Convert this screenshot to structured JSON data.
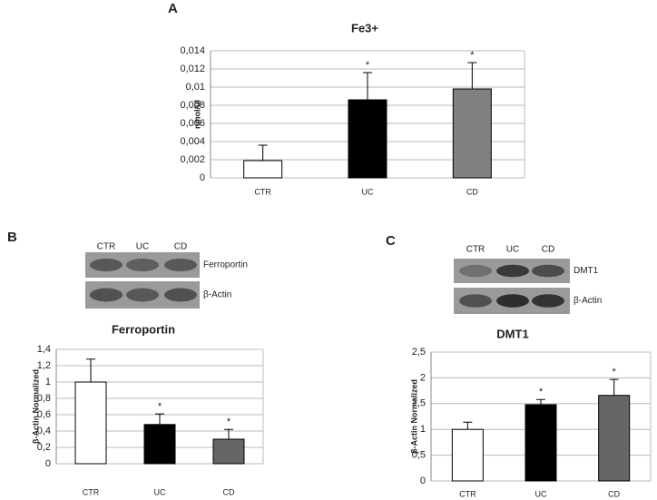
{
  "chart_data": [
    {
      "type": "bar",
      "panel_label": "A",
      "title": "Fe3+",
      "y_label": "nmol/ul",
      "categories": [
        "CTR",
        "UC",
        "CD"
      ],
      "values": [
        0.0019,
        0.0086,
        0.0098
      ],
      "errors": [
        0.0017,
        0.003,
        0.0029
      ],
      "significance": [
        null,
        "*",
        "*"
      ],
      "colors": [
        "#ffffff",
        "#000000",
        "#808080"
      ],
      "ylim": [
        0,
        0.014
      ],
      "yticks": [
        0,
        {
          "value": 0.002,
          "label": "0,002"
        },
        {
          "value": 0.004,
          "label": "0,004"
        },
        {
          "value": 0.006,
          "label": "0,006"
        },
        {
          "value": 0.008,
          "label": "0,008"
        },
        {
          "value": 0.01,
          "label": "0,01"
        },
        {
          "value": 0.012,
          "label": "0,012"
        },
        {
          "value": 0.014,
          "label": "0,014"
        }
      ],
      "grid": true
    },
    {
      "type": "bar",
      "panel_label": "B",
      "title": "Ferroportin",
      "y_label": "β-Actin Normalized",
      "blot": {
        "lanes": [
          "CTR",
          "UC",
          "CD"
        ],
        "bands": [
          "Ferroportin",
          "β-Actin"
        ]
      },
      "categories": [
        "CTR",
        "UC",
        "CD"
      ],
      "values": [
        1.0,
        0.48,
        0.3
      ],
      "errors": [
        0.28,
        0.13,
        0.12
      ],
      "significance": [
        null,
        "*",
        "*"
      ],
      "colors": [
        "#ffffff",
        "#000000",
        "#666666"
      ],
      "ylim": [
        0,
        1.4
      ],
      "yticks": [
        0,
        {
          "value": 0.2,
          "label": "0,2"
        },
        {
          "value": 0.4,
          "label": "0,4"
        },
        {
          "value": 0.6,
          "label": "0,6"
        },
        {
          "value": 0.8,
          "label": "0,8"
        },
        1,
        {
          "value": 1.2,
          "label": "1,2"
        },
        {
          "value": 1.4,
          "label": "1,4"
        }
      ],
      "grid": true
    },
    {
      "type": "bar",
      "panel_label": "C",
      "title": "DMT1",
      "y_label": "β-Actin Normalized",
      "blot": {
        "lanes": [
          "CTR",
          "UC",
          "CD"
        ],
        "bands": [
          "DMT1",
          "β-Actin"
        ]
      },
      "categories": [
        "CTR",
        "UC",
        "CD"
      ],
      "values": [
        1.0,
        1.48,
        1.66
      ],
      "errors": [
        0.14,
        0.1,
        0.31
      ],
      "significance": [
        null,
        "*",
        "*"
      ],
      "colors": [
        "#ffffff",
        "#000000",
        "#666666"
      ],
      "ylim": [
        0,
        2.5
      ],
      "yticks": [
        0,
        {
          "value": 0.5,
          "label": "0,5"
        },
        1,
        {
          "value": 1.5,
          "label": "1,5"
        },
        2,
        {
          "value": 2.5,
          "label": "2,5"
        }
      ],
      "grid": true
    }
  ]
}
